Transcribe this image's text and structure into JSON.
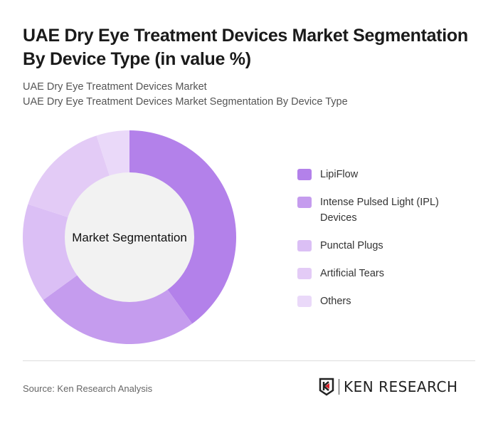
{
  "title": "UAE Dry Eye Treatment Devices Market Segmentation By Device Type (in value %)",
  "subtitle_1": "UAE Dry Eye Treatment Devices Market",
  "subtitle_2": "UAE Dry Eye Treatment Devices Market Segmentation By Device Type",
  "chart_data": {
    "type": "pie",
    "donut": true,
    "center_label": "Market Segmentation",
    "categories": [
      "LipiFlow",
      "Intense Pulsed Light (IPL) Devices",
      "Punctal Plugs",
      "Artificial Tears",
      "Others"
    ],
    "values": [
      40,
      25,
      15,
      15,
      5
    ],
    "colors": [
      "#b381ea",
      "#c59cee",
      "#dbbff5",
      "#e3cbf6",
      "#ead9f9"
    ],
    "legend_position": "right"
  },
  "source": "Source: Ken Research Analysis",
  "logo": "KEN RESEARCH"
}
